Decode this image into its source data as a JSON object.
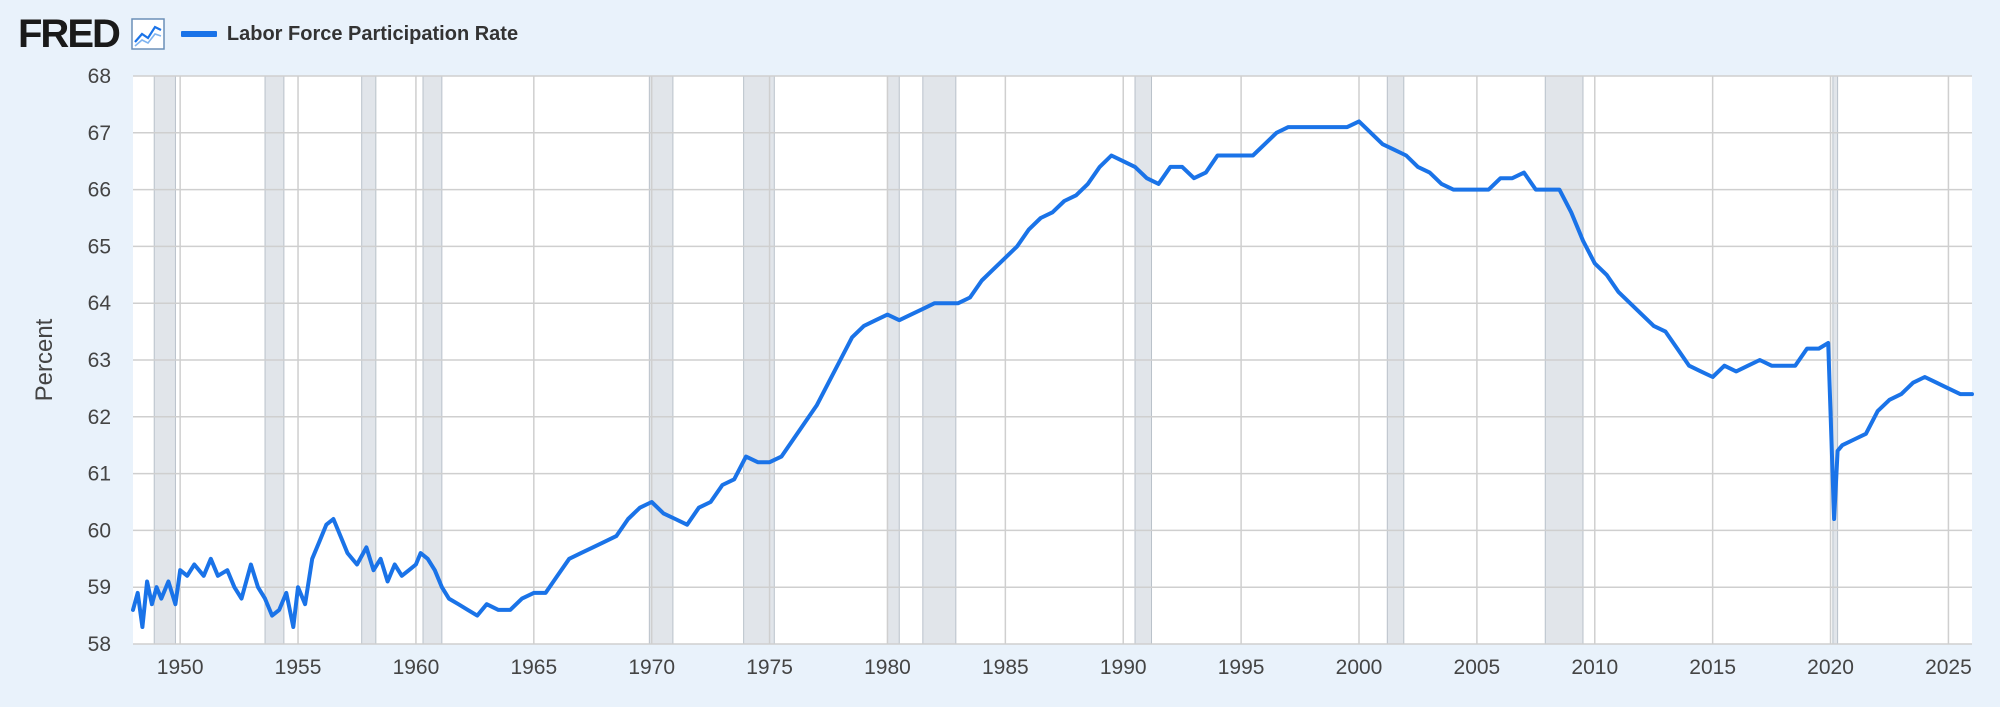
{
  "header": {
    "logo_text": "FRED",
    "logo_icon": "line-chart-icon"
  },
  "colors": {
    "background": "#e9f2fb",
    "plot_background": "#ffffff",
    "series": "#1a73e8",
    "recession": "#e1e5ea",
    "grid": "#cfcfcf"
  },
  "chart_data": {
    "type": "line",
    "title": "",
    "xlabel": "",
    "ylabel": "Percent",
    "xlim": [
      1948.0,
      2026.0
    ],
    "ylim": [
      58,
      68
    ],
    "grid": true,
    "legend": "top-left",
    "x_ticks": [
      1950,
      1955,
      1960,
      1965,
      1970,
      1975,
      1980,
      1985,
      1990,
      1995,
      2000,
      2005,
      2010,
      2015,
      2020,
      2025
    ],
    "y_ticks": [
      58,
      59,
      60,
      61,
      62,
      63,
      64,
      65,
      66,
      67,
      68
    ],
    "recessions": [
      [
        1948.9,
        1949.8
      ],
      [
        1953.6,
        1954.4
      ],
      [
        1957.7,
        1958.3
      ],
      [
        1960.3,
        1961.1
      ],
      [
        1969.9,
        1970.9
      ],
      [
        1973.9,
        1975.2
      ],
      [
        1980.0,
        1980.5
      ],
      [
        1981.5,
        1982.9
      ],
      [
        1990.5,
        1991.2
      ],
      [
        2001.2,
        2001.9
      ],
      [
        2007.9,
        2009.5
      ],
      [
        2020.1,
        2020.3
      ]
    ],
    "series": [
      {
        "name": "Labor Force Participation Rate",
        "x": [
          1948.0,
          1948.2,
          1948.4,
          1948.6,
          1948.8,
          1949.0,
          1949.2,
          1949.5,
          1949.8,
          1950.0,
          1950.3,
          1950.6,
          1951.0,
          1951.3,
          1951.6,
          1952.0,
          1952.3,
          1952.6,
          1953.0,
          1953.3,
          1953.6,
          1953.9,
          1954.2,
          1954.5,
          1954.8,
          1955.0,
          1955.3,
          1955.6,
          1955.9,
          1956.2,
          1956.5,
          1956.8,
          1957.1,
          1957.5,
          1957.9,
          1958.2,
          1958.5,
          1958.8,
          1959.1,
          1959.4,
          1959.7,
          1960.0,
          1960.2,
          1960.5,
          1960.8,
          1961.1,
          1961.4,
          1961.8,
          1962.2,
          1962.6,
          1963.0,
          1963.5,
          1964.0,
          1964.5,
          1965.0,
          1965.5,
          1966.0,
          1966.5,
          1967.0,
          1967.5,
          1968.0,
          1968.5,
          1969.0,
          1969.5,
          1970.0,
          1970.5,
          1971.0,
          1971.5,
          1972.0,
          1972.5,
          1973.0,
          1973.5,
          1974.0,
          1974.5,
          1975.0,
          1975.5,
          1976.0,
          1976.5,
          1977.0,
          1977.5,
          1978.0,
          1978.5,
          1979.0,
          1979.5,
          1980.0,
          1980.5,
          1981.0,
          1981.5,
          1982.0,
          1982.5,
          1983.0,
          1983.5,
          1984.0,
          1984.5,
          1985.0,
          1985.5,
          1986.0,
          1986.5,
          1987.0,
          1987.5,
          1988.0,
          1988.5,
          1989.0,
          1989.5,
          1990.0,
          1990.5,
          1991.0,
          1991.5,
          1992.0,
          1992.5,
          1993.0,
          1993.5,
          1994.0,
          1994.5,
          1995.0,
          1995.5,
          1996.0,
          1996.5,
          1997.0,
          1997.5,
          1998.0,
          1998.5,
          1999.0,
          1999.5,
          2000.0,
          2000.5,
          2001.0,
          2001.5,
          2002.0,
          2002.5,
          2003.0,
          2003.5,
          2004.0,
          2004.5,
          2005.0,
          2005.5,
          2006.0,
          2006.5,
          2007.0,
          2007.5,
          2008.0,
          2008.5,
          2009.0,
          2009.5,
          2010.0,
          2010.5,
          2011.0,
          2011.5,
          2012.0,
          2012.5,
          2013.0,
          2013.5,
          2014.0,
          2014.5,
          2015.0,
          2015.5,
          2016.0,
          2016.5,
          2017.0,
          2017.5,
          2018.0,
          2018.5,
          2019.0,
          2019.5,
          2019.9,
          2020.15,
          2020.3,
          2020.5,
          2021.0,
          2021.5,
          2022.0,
          2022.5,
          2023.0,
          2023.5,
          2024.0,
          2024.5,
          2025.0,
          2025.5,
          2026.0
        ],
        "y": [
          58.6,
          58.9,
          58.3,
          59.1,
          58.7,
          59.0,
          58.8,
          59.1,
          58.7,
          59.3,
          59.2,
          59.4,
          59.2,
          59.5,
          59.2,
          59.3,
          59.0,
          58.8,
          59.4,
          59.0,
          58.8,
          58.5,
          58.6,
          58.9,
          58.3,
          59.0,
          58.7,
          59.5,
          59.8,
          60.1,
          60.2,
          59.9,
          59.6,
          59.4,
          59.7,
          59.3,
          59.5,
          59.1,
          59.4,
          59.2,
          59.3,
          59.4,
          59.6,
          59.5,
          59.3,
          59.0,
          58.8,
          58.7,
          58.6,
          58.5,
          58.7,
          58.6,
          58.6,
          58.8,
          58.9,
          58.9,
          59.2,
          59.5,
          59.6,
          59.7,
          59.8,
          59.9,
          60.2,
          60.4,
          60.5,
          60.3,
          60.2,
          60.1,
          60.4,
          60.5,
          60.8,
          60.9,
          61.3,
          61.2,
          61.2,
          61.3,
          61.6,
          61.9,
          62.2,
          62.6,
          63.0,
          63.4,
          63.6,
          63.7,
          63.8,
          63.7,
          63.8,
          63.9,
          64.0,
          64.0,
          64.0,
          64.1,
          64.4,
          64.6,
          64.8,
          65.0,
          65.3,
          65.5,
          65.6,
          65.8,
          65.9,
          66.1,
          66.4,
          66.6,
          66.5,
          66.4,
          66.2,
          66.1,
          66.4,
          66.4,
          66.2,
          66.3,
          66.6,
          66.6,
          66.6,
          66.6,
          66.8,
          67.0,
          67.1,
          67.1,
          67.1,
          67.1,
          67.1,
          67.1,
          67.2,
          67.0,
          66.8,
          66.7,
          66.6,
          66.4,
          66.3,
          66.1,
          66.0,
          66.0,
          66.0,
          66.0,
          66.2,
          66.2,
          66.3,
          66.0,
          66.0,
          66.0,
          65.6,
          65.1,
          64.7,
          64.5,
          64.2,
          64.0,
          63.8,
          63.6,
          63.5,
          63.2,
          62.9,
          62.8,
          62.7,
          62.9,
          62.8,
          62.9,
          63.0,
          62.9,
          62.9,
          62.9,
          63.2,
          63.2,
          63.3,
          60.2,
          61.4,
          61.5,
          61.6,
          61.7,
          62.1,
          62.3,
          62.4,
          62.6,
          62.7,
          62.6,
          62.5,
          62.4,
          62.4
        ]
      }
    ]
  }
}
